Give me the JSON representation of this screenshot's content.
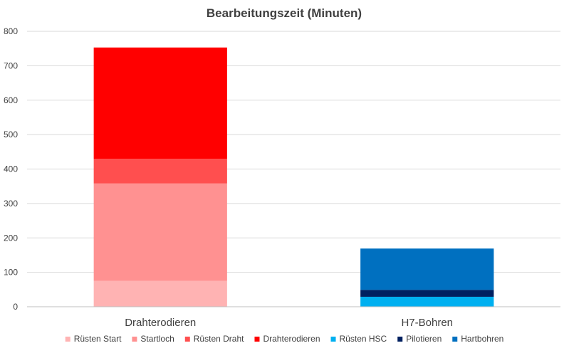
{
  "chart_data": {
    "type": "bar",
    "stacked": true,
    "title": "Bearbeitungszeit (Minuten)",
    "xlabel": "",
    "ylabel": "",
    "ylim": [
      0,
      800
    ],
    "yticks": [
      0,
      100,
      200,
      300,
      400,
      500,
      600,
      700,
      800
    ],
    "grid": true,
    "legend_position": "bottom",
    "categories": [
      "Drahterodieren",
      "H7-Bohren"
    ],
    "series": [
      {
        "name": "Rüsten Start",
        "color": "#FFB3B3",
        "values": [
          75,
          0
        ]
      },
      {
        "name": "Startloch",
        "color": "#FF9191",
        "values": [
          283,
          0
        ]
      },
      {
        "name": "Rüsten Draht",
        "color": "#FF4F4F",
        "values": [
          72,
          0
        ]
      },
      {
        "name": "Drahterodieren",
        "color": "#FF0000",
        "values": [
          323,
          0
        ]
      },
      {
        "name": "Rüsten HSC",
        "color": "#00B0F0",
        "values": [
          0,
          29
        ]
      },
      {
        "name": "Pilotieren",
        "color": "#002060",
        "values": [
          0,
          20
        ]
      },
      {
        "name": "Hartbohren",
        "color": "#0070C0",
        "values": [
          0,
          120
        ]
      }
    ]
  }
}
